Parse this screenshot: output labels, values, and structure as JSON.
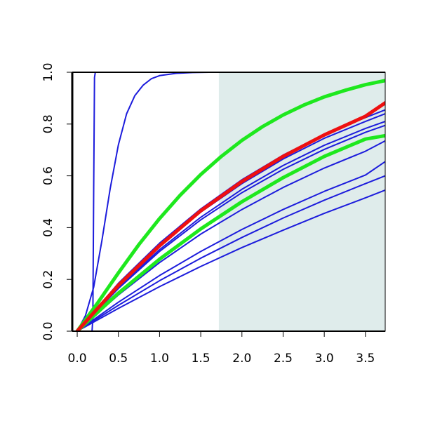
{
  "chart_data": {
    "type": "line",
    "title": "",
    "xlabel": "",
    "ylabel": "",
    "xlim": [
      -0.06,
      3.74
    ],
    "ylim": [
      0,
      1
    ],
    "x_ticks": [
      "0.0",
      "0.5",
      "1.0",
      "1.5",
      "2.0",
      "2.5",
      "3.0",
      "3.5"
    ],
    "y_ticks": [
      "0.0",
      "0.2",
      "0.4",
      "0.6",
      "0.8",
      "1.0"
    ],
    "shaded_region": {
      "x_from": 1.72,
      "x_to": 3.74,
      "color": "#dfeceb"
    },
    "grid": false,
    "legend": "none",
    "series": [
      {
        "color": "#1c1cdc",
        "width": 2,
        "x": [
          0,
          0.18,
          0.19,
          0.2,
          0.21,
          0.22,
          0.6,
          1.7,
          3.74
        ],
        "y": [
          0,
          0,
          0.05,
          0.55,
          0.98,
          1.0,
          1.0,
          1.0,
          1.0
        ]
      },
      {
        "color": "#1c1cdc",
        "width": 2,
        "x": [
          0,
          0.1,
          0.2,
          0.3,
          0.4,
          0.5,
          0.6,
          0.7,
          0.8,
          0.9,
          1.0,
          1.2,
          1.4,
          1.6,
          1.8,
          2.0,
          3.74
        ],
        "y": [
          0,
          0.06,
          0.17,
          0.35,
          0.55,
          0.72,
          0.84,
          0.91,
          0.95,
          0.975,
          0.987,
          0.996,
          0.999,
          1.0,
          1.0,
          1.0,
          1.0
        ]
      },
      {
        "color": "#1c1cdc",
        "width": 2,
        "x": [
          0,
          0.5,
          1.0,
          1.5,
          2.0,
          2.5,
          3.0,
          3.5,
          3.74
        ],
        "y": [
          0,
          0.165,
          0.308,
          0.43,
          0.535,
          0.625,
          0.702,
          0.768,
          0.795
        ]
      },
      {
        "color": "#1c1cdc",
        "width": 2,
        "x": [
          0,
          0.5,
          1.0,
          1.5,
          2.0,
          2.5,
          3.0,
          3.5,
          3.74
        ],
        "y": [
          0,
          0.17,
          0.315,
          0.44,
          0.548,
          0.64,
          0.718,
          0.783,
          0.81
        ]
      },
      {
        "color": "#1c1cdc",
        "width": 2,
        "x": [
          0,
          0.5,
          1.0,
          1.5,
          2.0,
          2.5,
          3.0,
          3.5,
          3.74
        ],
        "y": [
          0,
          0.18,
          0.33,
          0.46,
          0.57,
          0.665,
          0.745,
          0.81,
          0.84
        ]
      },
      {
        "color": "#1c1cdc",
        "width": 2,
        "x": [
          0,
          0.5,
          1.0,
          1.5,
          2.0,
          2.5,
          3.0,
          3.5,
          3.74
        ],
        "y": [
          0,
          0.185,
          0.34,
          0.472,
          0.585,
          0.68,
          0.76,
          0.825,
          0.855
        ]
      },
      {
        "color": "#1c1cdc",
        "width": 2,
        "x": [
          0,
          0.5,
          1.0,
          1.5,
          2.0,
          2.5,
          3.0,
          3.5,
          3.74
        ],
        "y": [
          0,
          0.14,
          0.265,
          0.375,
          0.47,
          0.555,
          0.63,
          0.695,
          0.735
        ]
      },
      {
        "color": "#1c1cdc",
        "width": 2,
        "x": [
          0,
          0.5,
          1.0,
          1.5,
          2.0,
          2.5,
          3.0,
          3.5,
          3.74
        ],
        "y": [
          0,
          0.112,
          0.215,
          0.308,
          0.393,
          0.47,
          0.54,
          0.603,
          0.655
        ]
      },
      {
        "color": "#1c1cdc",
        "width": 2,
        "x": [
          0,
          0.5,
          1.0,
          1.5,
          2.0,
          2.5,
          3.0,
          3.5,
          3.74
        ],
        "y": [
          0,
          0.1,
          0.195,
          0.282,
          0.362,
          0.437,
          0.506,
          0.57,
          0.6
        ]
      },
      {
        "color": "#1c1cdc",
        "width": 2,
        "x": [
          0,
          0.5,
          1.0,
          1.5,
          2.0,
          2.5,
          3.0,
          3.5,
          3.74
        ],
        "y": [
          0,
          0.088,
          0.172,
          0.25,
          0.323,
          0.39,
          0.455,
          0.515,
          0.545
        ]
      },
      {
        "color": "#1ee81e",
        "width": 5,
        "x": [
          0,
          0.25,
          0.5,
          0.75,
          1.0,
          1.25,
          1.5,
          1.75,
          2.0,
          2.25,
          2.5,
          2.75,
          3.0,
          3.25,
          3.5,
          3.74
        ],
        "y": [
          0,
          0.11,
          0.225,
          0.335,
          0.435,
          0.525,
          0.605,
          0.675,
          0.737,
          0.79,
          0.835,
          0.873,
          0.905,
          0.93,
          0.952,
          0.968
        ]
      },
      {
        "color": "#1ee81e",
        "width": 5,
        "x": [
          0,
          0.5,
          1.0,
          1.5,
          2.0,
          2.5,
          3.0,
          3.5,
          3.74
        ],
        "y": [
          0,
          0.147,
          0.278,
          0.395,
          0.5,
          0.593,
          0.675,
          0.742,
          0.755
        ]
      },
      {
        "color": "#ee1010",
        "width": 5,
        "x": [
          0,
          0.5,
          1.0,
          1.5,
          2.0,
          2.5,
          3.0,
          3.5,
          3.74
        ],
        "y": [
          0,
          0.177,
          0.33,
          0.465,
          0.578,
          0.675,
          0.758,
          0.83,
          0.882
        ]
      }
    ]
  }
}
